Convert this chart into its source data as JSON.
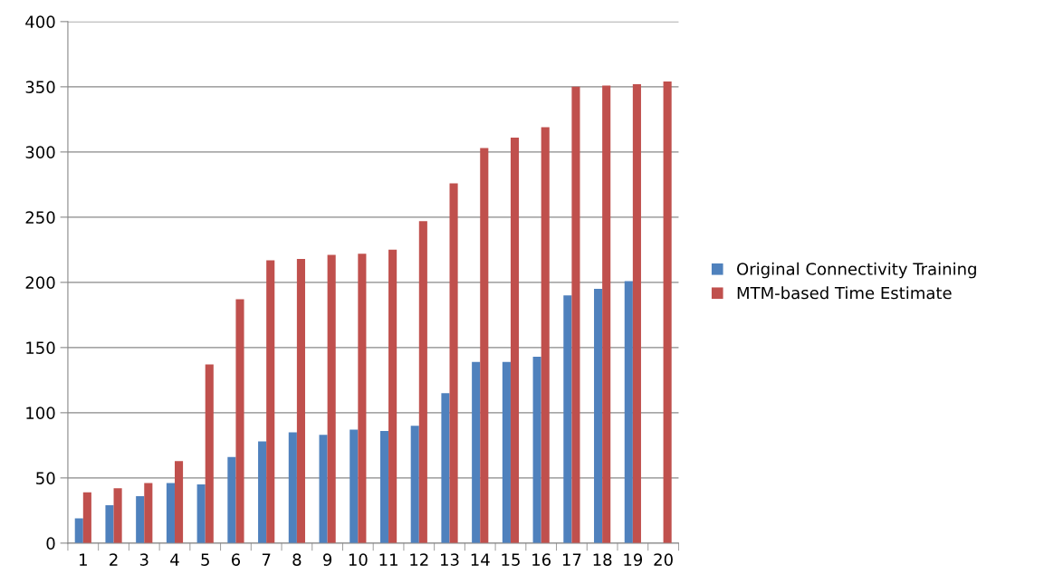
{
  "chart_data": {
    "type": "bar",
    "categories": [
      "1",
      "2",
      "3",
      "4",
      "5",
      "6",
      "7",
      "8",
      "9",
      "10",
      "11",
      "12",
      "13",
      "14",
      "15",
      "16",
      "17",
      "18",
      "19",
      "20"
    ],
    "series": [
      {
        "name": "Original Connectivity Training",
        "color": "#4f81bd",
        "values": [
          19,
          29,
          36,
          46,
          45,
          66,
          78,
          85,
          83,
          87,
          86,
          90,
          115,
          139,
          139,
          143,
          190,
          195,
          201,
          null
        ]
      },
      {
        "name": "MTM-based Time Estimate",
        "color": "#c0504d",
        "values": [
          39,
          42,
          46,
          63,
          137,
          187,
          217,
          218,
          221,
          222,
          225,
          247,
          276,
          303,
          311,
          319,
          350,
          351,
          352,
          354
        ]
      }
    ],
    "ylim": [
      0,
      400
    ],
    "yticks": [
      0,
      50,
      100,
      150,
      200,
      250,
      300,
      350,
      400
    ],
    "grid": "y",
    "legend": "right"
  }
}
